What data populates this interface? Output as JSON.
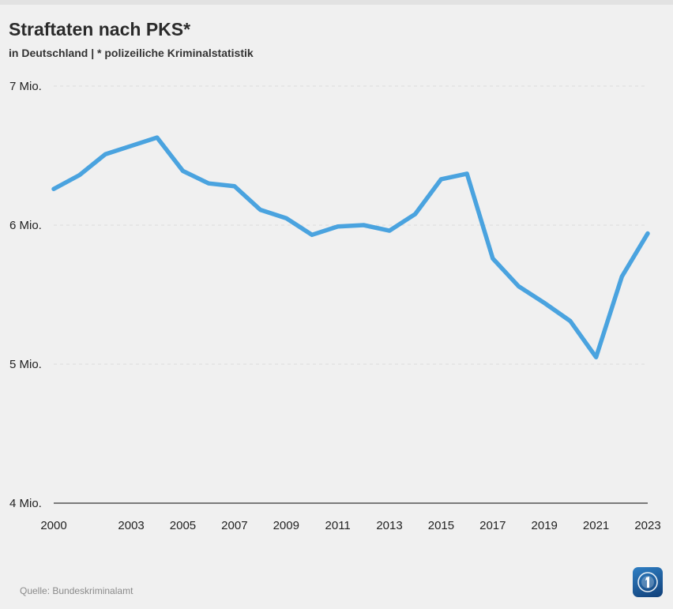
{
  "header": {
    "title": "Straftaten nach PKS*",
    "subtitle": "in Deutschland | * polizeiliche Kriminalstatistik"
  },
  "footer": {
    "source": "Quelle: Bundeskriminalamt"
  },
  "colors": {
    "line": "#4aa3df",
    "grid": "#dddddd",
    "axis": "#333333",
    "logo": "#1c5fa6"
  },
  "icons": {
    "logo": "tagesschau-logo-icon"
  },
  "chart_data": {
    "type": "line",
    "title": "Straftaten nach PKS*",
    "subtitle": "in Deutschland | * polizeiliche Kriminalstatistik",
    "xlabel": "",
    "ylabel": "",
    "x": [
      2000,
      2001,
      2002,
      2003,
      2004,
      2005,
      2006,
      2007,
      2008,
      2009,
      2010,
      2011,
      2012,
      2013,
      2014,
      2015,
      2016,
      2017,
      2018,
      2019,
      2020,
      2021,
      2022,
      2023
    ],
    "xticks": [
      "2000",
      "2003",
      "2005",
      "2007",
      "2009",
      "2011",
      "2013",
      "2015",
      "2017",
      "2019",
      "2021",
      "2023"
    ],
    "xlim": [
      2000,
      2023
    ],
    "series": [
      {
        "values": [
          6.26,
          6.36,
          6.51,
          6.57,
          6.63,
          6.39,
          6.3,
          6.28,
          6.11,
          6.05,
          5.93,
          5.99,
          6.0,
          5.96,
          6.08,
          6.33,
          6.37,
          5.76,
          5.56,
          5.44,
          5.31,
          5.05,
          5.63,
          5.94
        ]
      }
    ],
    "yticks": [
      4,
      5,
      6,
      7
    ],
    "ytick_labels": [
      "4 Mio.",
      "5 Mio.",
      "6 Mio.",
      "7 Mio."
    ],
    "ylim": [
      4,
      7
    ],
    "grid": true,
    "legend": "none"
  }
}
